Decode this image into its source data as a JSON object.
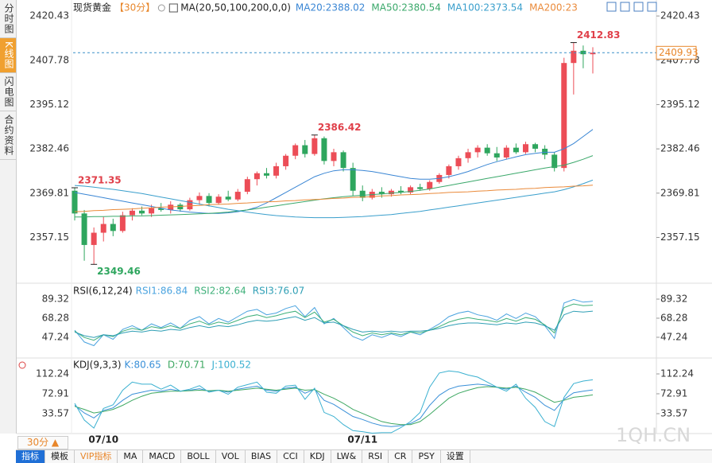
{
  "sidebar_tabs": [
    "分时图",
    "K线图",
    "闪电图",
    "合约资料"
  ],
  "period_button": "30分 ▲",
  "toolbar": [
    "指标",
    "模板",
    "VIP指标",
    "MA",
    "MACD",
    "BOLL",
    "VOL",
    "BIAS",
    "CCI",
    "KDJ",
    "LW&",
    "RSI",
    "CR",
    "PSY",
    "设置"
  ],
  "watermark": "1QH.CN",
  "chart_data": [
    {
      "type": "candlestick",
      "title": "现货黄金",
      "period": "【30分】",
      "indicator": "MA(20,50,100,200,0,0)",
      "up_color": "#ec4d57",
      "down_color": "#2ea65e",
      "categories": [
        null,
        null,
        null,
        "07/10",
        null,
        null,
        null,
        null,
        null,
        null,
        null,
        null,
        null,
        null,
        null,
        null,
        null,
        null,
        null,
        null,
        null,
        null,
        null,
        null,
        null,
        null,
        null,
        null,
        null,
        null,
        "07/11",
        null,
        null,
        null,
        null,
        null,
        null,
        null,
        null,
        null,
        null,
        null,
        null,
        null,
        null,
        null,
        null,
        null,
        null,
        null,
        null,
        null,
        null,
        null,
        null
      ],
      "candles": {
        "open": [
          2370.5,
          2364.0,
          2355.0,
          2358.5,
          2361.0,
          2359.0,
          2363.5,
          2364.8,
          2364.0,
          2365.5,
          2365.0,
          2366.5,
          2365.2,
          2367.8,
          2369.0,
          2367.0,
          2368.8,
          2368.0,
          2370.2,
          2373.8,
          2375.5,
          2374.8,
          2377.5,
          2380.5,
          2383.5,
          2381.0,
          2385.5,
          2379.0,
          2381.5,
          2377.0,
          2370.5,
          2368.5,
          2370.2,
          2369.5,
          2370.5,
          2370.0,
          2371.5,
          2371.0,
          2373.0,
          2375.0,
          2377.5,
          2379.8,
          2381.5,
          2382.8,
          2381.2,
          2380.0,
          2382.8,
          2381.5,
          2383.8,
          2382.5,
          2380.8,
          2377.0,
          2407.0,
          2410.5,
          2409.5
        ],
        "high": [
          2371.35,
          2365.0,
          2360.0,
          2363.0,
          2362.5,
          2364.5,
          2365.5,
          2366.0,
          2366.5,
          2367.0,
          2367.5,
          2367.0,
          2368.5,
          2370.0,
          2369.8,
          2369.5,
          2370.5,
          2371.0,
          2374.5,
          2376.0,
          2377.0,
          2378.5,
          2381.0,
          2384.0,
          2385.0,
          2386.42,
          2386.0,
          2382.5,
          2382.0,
          2378.5,
          2372.0,
          2371.0,
          2371.5,
          2371.0,
          2371.8,
          2372.0,
          2372.5,
          2373.5,
          2375.5,
          2378.0,
          2380.5,
          2382.5,
          2383.5,
          2383.8,
          2383.0,
          2383.5,
          2384.0,
          2384.5,
          2384.2,
          2383.5,
          2381.5,
          2408.5,
          2412.83,
          2412.0,
          2411.5
        ],
        "low": [
          2362.0,
          2350.5,
          2349.46,
          2356.0,
          2357.5,
          2358.5,
          2362.0,
          2363.5,
          2363.0,
          2364.5,
          2364.0,
          2364.5,
          2364.8,
          2366.5,
          2366.0,
          2366.5,
          2367.5,
          2367.5,
          2369.5,
          2372.0,
          2374.0,
          2374.0,
          2376.5,
          2379.5,
          2380.0,
          2380.5,
          2378.0,
          2377.5,
          2376.0,
          2369.0,
          2367.5,
          2368.0,
          2368.5,
          2368.8,
          2369.5,
          2369.5,
          2370.5,
          2370.5,
          2372.5,
          2374.0,
          2376.5,
          2378.5,
          2380.0,
          2380.5,
          2379.0,
          2379.5,
          2381.0,
          2381.0,
          2381.5,
          2379.5,
          2376.0,
          2376.0,
          2398.0,
          2405.5,
          2404.0
        ],
        "close": [
          2364.0,
          2355.0,
          2358.5,
          2361.0,
          2359.0,
          2363.5,
          2364.8,
          2364.0,
          2365.5,
          2365.0,
          2366.5,
          2365.2,
          2367.8,
          2369.0,
          2367.0,
          2368.8,
          2368.0,
          2370.2,
          2373.8,
          2375.5,
          2374.8,
          2377.5,
          2380.5,
          2383.5,
          2381.0,
          2385.5,
          2379.0,
          2381.5,
          2377.0,
          2370.5,
          2368.5,
          2370.2,
          2369.5,
          2370.5,
          2370.0,
          2371.5,
          2371.0,
          2373.0,
          2375.0,
          2377.5,
          2379.8,
          2381.5,
          2382.8,
          2381.2,
          2380.0,
          2382.8,
          2381.5,
          2383.8,
          2382.5,
          2380.8,
          2377.0,
          2407.0,
          2410.5,
          2409.5,
          2409.93
        ]
      },
      "series": [
        {
          "name": "MA20:2388.02",
          "color": "#3a86d4",
          "values": [
            2370,
            2369.5,
            2369,
            2368.5,
            2368,
            2367.5,
            2367,
            2366.5,
            2366,
            2365.5,
            2365,
            2364.7,
            2364.4,
            2364.2,
            2364,
            2364,
            2364.2,
            2364.5,
            2365,
            2365.8,
            2367,
            2368.5,
            2370,
            2371.5,
            2373,
            2374.5,
            2375.5,
            2376.2,
            2376.5,
            2376.5,
            2376.3,
            2376,
            2375.5,
            2375,
            2374.5,
            2374,
            2373.8,
            2373.8,
            2374,
            2374.5,
            2375.2,
            2376,
            2377,
            2378,
            2378.8,
            2379.5,
            2380.2,
            2380.8,
            2381.2,
            2381.5,
            2381.5,
            2382.5,
            2384,
            2386,
            2388.02
          ]
        },
        {
          "name": "MA50:2380.54",
          "color": "#3aa86a",
          "values": [
            2363,
            2363,
            2363.1,
            2363.1,
            2363.2,
            2363.2,
            2363.3,
            2363.3,
            2363.4,
            2363.5,
            2363.6,
            2363.7,
            2363.8,
            2363.9,
            2364,
            2364.2,
            2364.4,
            2364.7,
            2365,
            2365.4,
            2365.8,
            2366.2,
            2366.6,
            2367,
            2367.4,
            2367.8,
            2368.2,
            2368.5,
            2368.8,
            2369,
            2369.2,
            2369.4,
            2369.6,
            2369.8,
            2370,
            2370.3,
            2370.6,
            2371,
            2371.5,
            2372,
            2372.5,
            2373,
            2373.5,
            2374,
            2374.5,
            2375,
            2375.5,
            2376,
            2376.5,
            2377,
            2377.4,
            2377.8,
            2378.6,
            2379.5,
            2380.54
          ]
        },
        {
          "name": "MA100:2373.54",
          "color": "#3a9fcc",
          "values": [
            2372,
            2371.8,
            2371.5,
            2371.2,
            2370.9,
            2370.5,
            2370.1,
            2369.7,
            2369.2,
            2368.7,
            2368.2,
            2367.7,
            2367.2,
            2366.7,
            2366.2,
            2365.7,
            2365.2,
            2364.8,
            2364.4,
            2364,
            2363.7,
            2363.4,
            2363.2,
            2363,
            2362.9,
            2362.8,
            2362.8,
            2362.8,
            2362.9,
            2363,
            2363.1,
            2363.3,
            2363.5,
            2363.7,
            2364,
            2364.3,
            2364.6,
            2365,
            2365.4,
            2365.8,
            2366.2,
            2366.6,
            2367,
            2367.4,
            2367.8,
            2368.2,
            2368.6,
            2369,
            2369.4,
            2369.8,
            2370.2,
            2370.8,
            2371.6,
            2372.5,
            2373.54
          ]
        },
        {
          "name": "MA200:23",
          "color": "#ea8a3a",
          "values": [
            2364.5,
            2364.6,
            2364.8,
            2364.9,
            2365.1,
            2365.2,
            2365.3,
            2365.5,
            2365.6,
            2365.8,
            2365.9,
            2366.0,
            2366.2,
            2366.3,
            2366.5,
            2366.6,
            2366.7,
            2366.9,
            2367.0,
            2367.2,
            2367.3,
            2367.4,
            2367.6,
            2367.7,
            2367.9,
            2368.0,
            2368.1,
            2368.3,
            2368.4,
            2368.6,
            2368.7,
            2368.8,
            2369.0,
            2369.1,
            2369.3,
            2369.4,
            2369.5,
            2369.7,
            2369.8,
            2370.0,
            2370.1,
            2370.2,
            2370.4,
            2370.5,
            2370.7,
            2370.8,
            2370.9,
            2371.1,
            2371.2,
            2371.4,
            2371.5,
            2371.6,
            2371.8,
            2371.9,
            2372.1
          ]
        }
      ],
      "ylim": [
        2344.3,
        2425.0
      ],
      "yticks": [
        2420.43,
        2407.78,
        2395.12,
        2382.46,
        2369.81,
        2357.15
      ]
    },
    {
      "type": "line",
      "title": "RSI(6,12,24)",
      "series": [
        {
          "name": "RSI1:86.84",
          "color": "#4aa3df",
          "values": [
            55,
            42,
            38,
            50,
            45,
            56,
            60,
            55,
            62,
            58,
            63,
            57,
            66,
            70,
            62,
            68,
            64,
            70,
            76,
            78,
            72,
            74,
            79,
            82,
            70,
            80,
            62,
            68,
            58,
            48,
            44,
            50,
            47,
            51,
            48,
            53,
            50,
            56,
            62,
            70,
            74,
            76,
            72,
            70,
            66,
            73,
            68,
            74,
            70,
            60,
            46,
            85,
            89,
            86,
            86.84
          ]
        },
        {
          "name": "RSI2:82.64",
          "color": "#3fb07a",
          "values": [
            54,
            47,
            44,
            50,
            48,
            54,
            57,
            55,
            59,
            57,
            60,
            57,
            62,
            65,
            61,
            64,
            62,
            66,
            70,
            72,
            69,
            71,
            74,
            76,
            69,
            75,
            64,
            67,
            60,
            53,
            49,
            52,
            50,
            52,
            50,
            53,
            52,
            55,
            59,
            64,
            67,
            69,
            67,
            66,
            64,
            68,
            65,
            69,
            67,
            61,
            52,
            80,
            84,
            82,
            82.64
          ]
        },
        {
          "name": "RSI3:76.07",
          "color": "#2f9fb5",
          "values": [
            53,
            49,
            47,
            50,
            49,
            52,
            54,
            53,
            55,
            54,
            56,
            55,
            58,
            60,
            58,
            60,
            59,
            61,
            64,
            66,
            65,
            66,
            68,
            70,
            66,
            69,
            63,
            64,
            60,
            56,
            53,
            54,
            53,
            54,
            53,
            54,
            54,
            55,
            57,
            60,
            62,
            63,
            63,
            62,
            61,
            63,
            62,
            64,
            63,
            60,
            55,
            72,
            76,
            75,
            76.07
          ]
        }
      ],
      "ylim": [
        24.4,
        105.1
      ],
      "yticks": [
        89.32,
        68.28,
        47.24
      ]
    },
    {
      "type": "line",
      "title": "KDJ(9,3,3)",
      "series": [
        {
          "name": "K:80.65",
          "color": "#3a90d8",
          "values": [
            50,
            35,
            25,
            40,
            45,
            60,
            72,
            76,
            80,
            78,
            82,
            78,
            80,
            83,
            78,
            80,
            76,
            82,
            85,
            88,
            80,
            78,
            84,
            86,
            74,
            82,
            60,
            52,
            40,
            28,
            22,
            15,
            10,
            8,
            10,
            14,
            24,
            50,
            70,
            82,
            88,
            90,
            92,
            90,
            86,
            82,
            88,
            76,
            66,
            50,
            40,
            62,
            75,
            78,
            80.65
          ]
        },
        {
          "name": "D:70.71",
          "color": "#3ea862",
          "values": [
            48,
            42,
            35,
            38,
            42,
            50,
            60,
            68,
            74,
            76,
            78,
            78,
            79,
            80,
            79,
            80,
            78,
            80,
            82,
            84,
            82,
            80,
            82,
            84,
            80,
            81,
            72,
            64,
            54,
            42,
            34,
            26,
            18,
            14,
            12,
            12,
            18,
            32,
            48,
            64,
            74,
            80,
            85,
            87,
            86,
            84,
            86,
            82,
            76,
            66,
            56,
            60,
            66,
            68,
            70.71
          ]
        },
        {
          "name": "J:100.52",
          "color": "#3ab0d0",
          "values": [
            54,
            21,
            5,
            44,
            51,
            80,
            96,
            92,
            92,
            82,
            90,
            78,
            82,
            89,
            76,
            80,
            72,
            86,
            91,
            96,
            76,
            74,
            88,
            90,
            62,
            84,
            36,
            28,
            12,
            0,
            -2,
            -5,
            -4,
            -4,
            6,
            18,
            36,
            86,
            114,
            118,
            116,
            110,
            106,
            96,
            86,
            78,
            92,
            64,
            46,
            18,
            8,
            66,
            93,
            98,
            100.52
          ]
        }
      ],
      "ylim": [
        -5.8,
        143.7
      ],
      "yticks": [
        112.24,
        72.91,
        33.57
      ]
    }
  ]
}
